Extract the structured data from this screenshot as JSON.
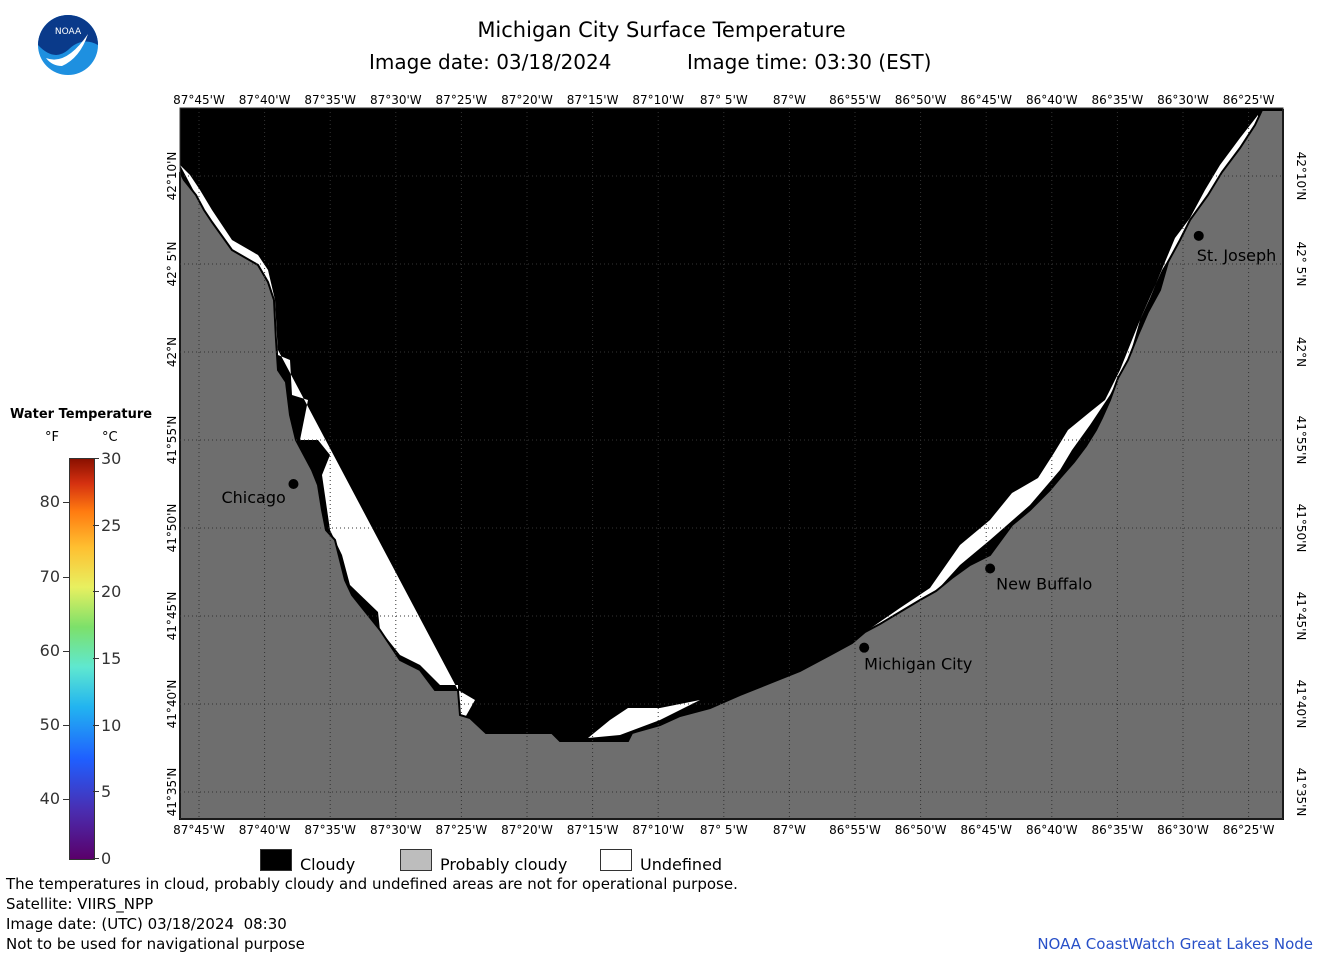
{
  "header": {
    "title": "Michigan City Surface Temperature",
    "image_date": "Image date: 03/18/2024",
    "image_time": "Image time: 03:30 (EST)"
  },
  "logo": {
    "text": "NOAA",
    "icon": "noaa-logo-icon"
  },
  "map": {
    "lon_labels": [
      "87°45'W",
      "87°40'W",
      "87°35'W",
      "87°30'W",
      "87°25'W",
      "87°20'W",
      "87°15'W",
      "87°10'W",
      "87° 5'W",
      "87°W",
      "86°55'W",
      "86°50'W",
      "86°45'W",
      "86°40'W",
      "86°35'W",
      "86°30'W",
      "86°25'W"
    ],
    "lat_labels": [
      "42°10'N",
      "42° 5'N",
      "42°N",
      "41°55'N",
      "41°50'N",
      "41°45'N",
      "41°40'N",
      "41°35'N"
    ],
    "cities": [
      {
        "name": "Chicago",
        "lat": 41.875,
        "lon": -87.63
      },
      {
        "name": "St. Joseph",
        "lat": 42.11,
        "lon": -86.48
      },
      {
        "name": "New Buffalo",
        "lat": 41.795,
        "lon": -86.745
      },
      {
        "name": "Michigan City",
        "lat": 41.72,
        "lon": -86.905
      }
    ],
    "colors": {
      "cloudy": "#000000",
      "probably_cloudy": "#6e6e6e",
      "undefined": "#ffffff"
    }
  },
  "legend": {
    "title": "Water Temperature",
    "unit_f": "°F",
    "unit_c": "°C",
    "ticks_f": [
      "80",
      "70",
      "60",
      "50",
      "40"
    ],
    "ticks_c": [
      "30",
      "25",
      "20",
      "15",
      "10",
      "5",
      "0"
    ]
  },
  "key": {
    "cloudy": "Cloudy",
    "probably_cloudy": "Probably cloudy",
    "undefined": "Undefined"
  },
  "footer": {
    "line1": "The temperatures in cloud, probably cloudy and undefined areas are not for operational purpose.",
    "line2": "Satellite: VIIRS_NPP",
    "line3": "Image date: (UTC) 03/18/2024  08:30",
    "line4": "Not to be used for navigational purpose",
    "credit": "NOAA CoastWatch Great Lakes Node"
  }
}
